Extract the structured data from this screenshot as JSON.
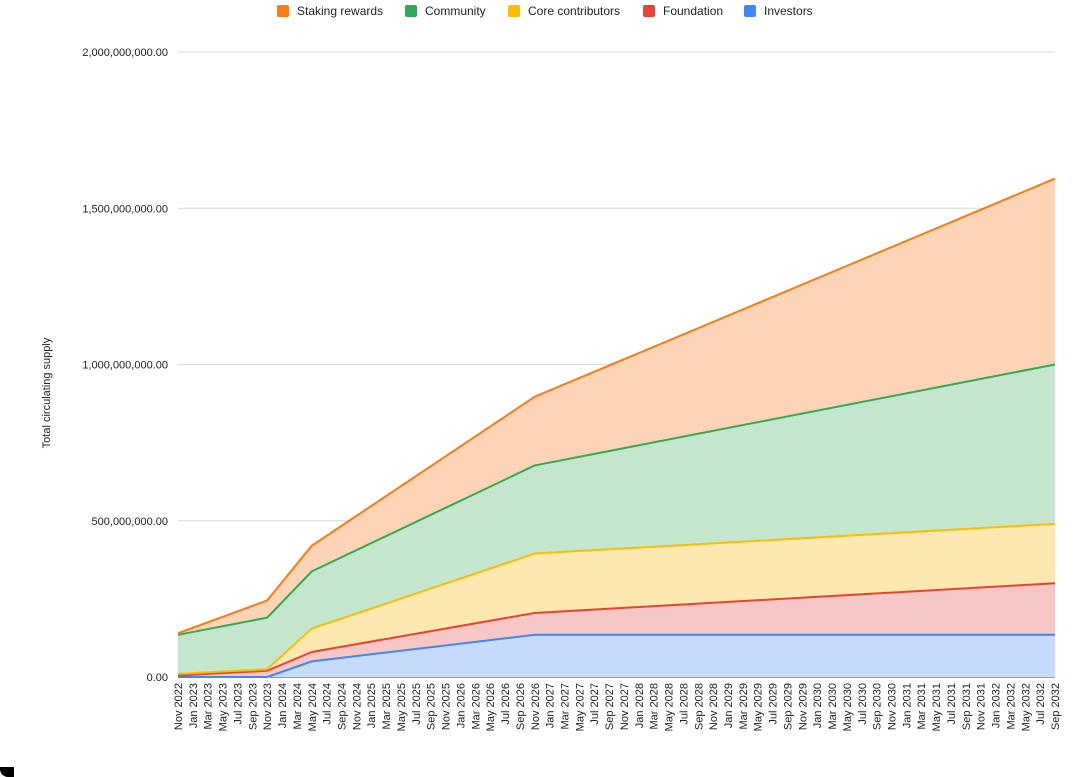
{
  "chart_data": {
    "type": "area",
    "stacked": true,
    "ylabel": "Total circulating supply",
    "ylim": [
      0,
      2000000000
    ],
    "yticks": [
      0,
      500000000,
      1000000000,
      1500000000,
      2000000000
    ],
    "ytick_labels": [
      "0.00",
      "500,000,000.00",
      "1,000,000,000.00",
      "1,500,000,000.00",
      "2,000,000,000.00"
    ],
    "grid": true,
    "legend_position": "top",
    "x": [
      "Nov 2022",
      "Nov 2023",
      "May 2024",
      "Nov 2026",
      "Sep 2032"
    ],
    "x_tick_labels": [
      "Nov 2022",
      "Jan 2023",
      "Mar 2023",
      "May 2023",
      "Jul 2023",
      "Sep 2023",
      "Nov 2023",
      "Jan 2024",
      "Mar 2024",
      "May 2024",
      "Jul 2024",
      "Sep 2024",
      "Nov 2024",
      "Jan 2025",
      "Mar 2025",
      "May 2025",
      "Jul 2025",
      "Sep 2025",
      "Nov 2025",
      "Jan 2026",
      "Mar 2026",
      "May 2026",
      "Jul 2026",
      "Sep 2026",
      "Nov 2026",
      "Jan 2027",
      "Mar 2027",
      "May 2027",
      "Jul 2027",
      "Sep 2027",
      "Nov 2027",
      "Jan 2028",
      "Mar 2028",
      "May 2028",
      "Jul 2028",
      "Sep 2028",
      "Nov 2028",
      "Jan 2029",
      "Mar 2029",
      "May 2029",
      "Jul 2029",
      "Sep 2029",
      "Nov 2029",
      "Jan 2030",
      "Mar 2030",
      "May 2030",
      "Jul 2030",
      "Sep 2030",
      "Nov 2030",
      "Jan 2031",
      "Mar 2031",
      "May 2031",
      "Jul 2031",
      "Sep 2031",
      "Nov 2031",
      "Jan 2032",
      "Mar 2032",
      "May 2032",
      "Jul 2032",
      "Sep 2032"
    ],
    "series": [
      {
        "name": "Investors",
        "color": "#4285f4",
        "fill": "#c6dafc",
        "values": [
          0,
          0,
          50000000,
          135000000,
          135000000
        ]
      },
      {
        "name": "Foundation",
        "color": "#ea4335",
        "fill": "#f6c7c4",
        "values": [
          5000000,
          20000000,
          30000000,
          70000000,
          165000000
        ]
      },
      {
        "name": "Core contributors",
        "color": "#fbbc04",
        "fill": "#fde8b0",
        "values": [
          5000000,
          5000000,
          75000000,
          190000000,
          190000000
        ]
      },
      {
        "name": "Community",
        "color": "#34a853",
        "fill": "#c4e6cc",
        "values": [
          125000000,
          165000000,
          183000000,
          282000000,
          510000000
        ]
      },
      {
        "name": "Staking rewards",
        "color": "#fa7b17",
        "fill": "#fdd5b6",
        "values": [
          5000000,
          55000000,
          82000000,
          220000000,
          595000000
        ]
      }
    ],
    "legend_order": [
      "Staking rewards",
      "Community",
      "Core contributors",
      "Foundation",
      "Investors"
    ]
  }
}
